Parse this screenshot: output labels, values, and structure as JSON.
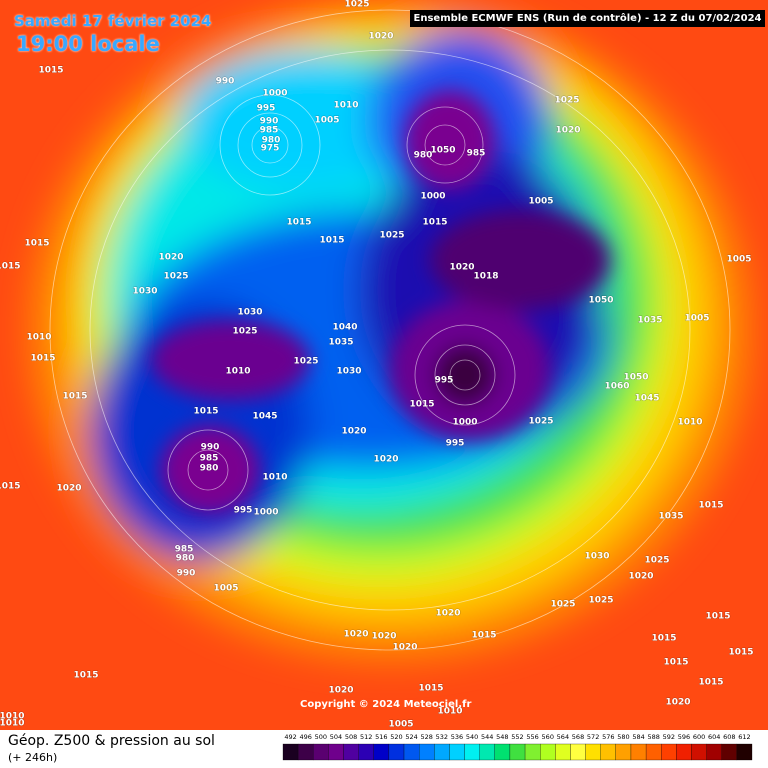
{
  "header": {
    "run": "Ensemble ECMWF ENS  (Run de contrôle)  -  12 Z du 07/02/2024",
    "date": "Samedi 17 février 2024",
    "time": "19:00 locale"
  },
  "copyright": "Copyright © 2024 Meteociel.fr",
  "legend": {
    "variable": "Géop. Z500 & pression au sol",
    "lead": "(+ 246h)",
    "scale": [
      492,
      496,
      500,
      504,
      508,
      512,
      516,
      520,
      524,
      528,
      532,
      536,
      540,
      544,
      548,
      552,
      556,
      560,
      564,
      568,
      572,
      576,
      580,
      584,
      588,
      592,
      596,
      600,
      604,
      608,
      612
    ],
    "colors": [
      "#1a0020",
      "#3d0048",
      "#5a0070",
      "#6f008c",
      "#5000a0",
      "#2c00b4",
      "#0000c8",
      "#0030e0",
      "#0058f0",
      "#0080ff",
      "#00a8ff",
      "#00d0ff",
      "#00f0f0",
      "#00e8b0",
      "#00e070",
      "#40e040",
      "#80f030",
      "#b0ff20",
      "#e0ff20",
      "#ffff40",
      "#ffe000",
      "#ffc000",
      "#ffa000",
      "#ff8000",
      "#ff6000",
      "#ff4000",
      "#f02000",
      "#d01000",
      "#a00000",
      "#600000",
      "#200000"
    ]
  },
  "pressure_labels": [
    "1025",
    "1020",
    "1015",
    "990",
    "1000",
    "995",
    "1010",
    "1005",
    "990",
    "985",
    "980",
    "975",
    "1025",
    "1020",
    "980",
    "1050",
    "985",
    "1000",
    "1005",
    "1015",
    "1015",
    "1015",
    "1025",
    "1015",
    "1015",
    "1020",
    "1018",
    "1050",
    "1035",
    "1005",
    "1005",
    "1030",
    "1025",
    "1040",
    "1035",
    "1010",
    "1025",
    "1030",
    "995",
    "1015",
    "1000",
    "1015",
    "1045",
    "1060",
    "1050",
    "1045",
    "1025",
    "1020",
    "995",
    "990",
    "985",
    "980",
    "1010",
    "995",
    "1000",
    "1020",
    "1015",
    "1020",
    "985",
    "980",
    "990",
    "1005",
    "1035",
    "1015",
    "1030",
    "1025",
    "1020",
    "1025",
    "1025",
    "1020",
    "1015",
    "1020",
    "1020",
    "1020",
    "1015",
    "1015",
    "1020",
    "1005",
    "1010",
    "1015",
    "1015",
    "1015",
    "1015",
    "1015",
    "1020",
    "1010",
    "1010",
    "1010",
    "1015",
    "1015",
    "1025",
    "1020",
    "1030",
    "1010"
  ]
}
